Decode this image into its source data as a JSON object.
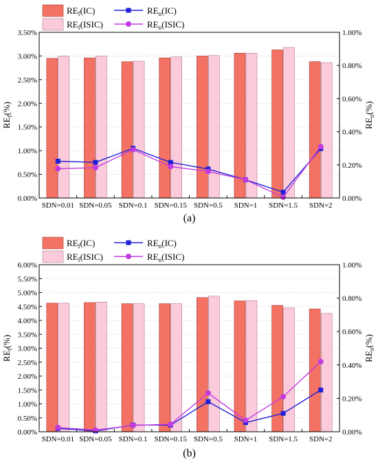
{
  "colors": {
    "ic_bar": "#F47264",
    "ic_bar_stroke": "#A33A30",
    "isic_bar": "#FBCADB",
    "isic_bar_stroke": "#B07A8E",
    "ic_line": "#1F1FD8",
    "isic_line": "#C23BE0"
  },
  "chart_data": [
    {
      "type": "bar",
      "panel_label": "(a)",
      "categories": [
        "SDN=0.01",
        "SDN=0.05",
        "SDN=0.1",
        "SDN=0.15",
        "SDN=0.5",
        "SDN=1",
        "SDN=1.5",
        "SDN=2"
      ],
      "left_axis": {
        "label_main": "RE",
        "label_sub": "f",
        "label_tail": "(%)",
        "ylim": [
          0,
          3.5
        ],
        "ticks": [
          "0.00%",
          "0.50%",
          "1.00%",
          "1.50%",
          "2.00%",
          "2.50%",
          "3.00%",
          "3.50%"
        ]
      },
      "right_axis": {
        "label_main": "RE",
        "label_sub": "n",
        "label_tail": "(%)",
        "ylim": [
          0,
          1.0
        ],
        "ticks": [
          "0.00%",
          "0.20%",
          "0.40%",
          "0.60%",
          "0.80%",
          "1.00%"
        ]
      },
      "grid": true,
      "legend_position": "top-left",
      "bar_series": [
        {
          "legend_main": "RE",
          "legend_sub": "f",
          "legend_tail": "(IC)",
          "values": [
            2.95,
            2.96,
            2.88,
            2.96,
            3.0,
            3.06,
            3.13,
            2.88
          ]
        },
        {
          "legend_main": "RE",
          "legend_sub": "f",
          "legend_tail": "(ISIC)",
          "values": [
            3.0,
            3.0,
            2.89,
            2.98,
            3.01,
            3.06,
            3.18,
            2.86
          ]
        }
      ],
      "line_series": [
        {
          "legend_main": "RE",
          "legend_sub": "n",
          "legend_tail": "(IC)",
          "marker": "square",
          "values": [
            0.222,
            0.215,
            0.3,
            0.215,
            0.175,
            0.11,
            0.035,
            0.298
          ]
        },
        {
          "legend_main": "RE",
          "legend_sub": "n",
          "legend_tail": "(ISIC)",
          "marker": "circle",
          "values": [
            0.177,
            0.183,
            0.292,
            0.19,
            0.16,
            0.11,
            0.005,
            0.31
          ]
        }
      ]
    },
    {
      "type": "bar",
      "panel_label": "(b)",
      "categories": [
        "SDN=0.01",
        "SDN=0.05",
        "SDN=0.1",
        "SDN=0.15",
        "SDN=0.5",
        "SDN=1",
        "SDN=1.5",
        "SDN=2"
      ],
      "left_axis": {
        "label_main": "RE",
        "label_sub": "f",
        "label_tail": "(%)",
        "ylim": [
          0,
          6.0
        ],
        "ticks": [
          "0.00%",
          "0.50%",
          "1.00%",
          "1.50%",
          "2.00%",
          "2.50%",
          "3.00%",
          "3.50%",
          "4.00%",
          "4.50%",
          "5.00%",
          "5.50%",
          "6.00%"
        ]
      },
      "right_axis": {
        "label_main": "RE",
        "label_sub": "n",
        "label_tail": "(%)",
        "ylim": [
          0,
          1.0
        ],
        "ticks": [
          "0.00%",
          "0.20%",
          "0.40%",
          "0.60%",
          "0.80%",
          "1.00%"
        ]
      },
      "grid": true,
      "legend_position": "top-left",
      "bar_series": [
        {
          "legend_main": "RE",
          "legend_sub": "f",
          "legend_tail": "(IC)",
          "values": [
            4.62,
            4.64,
            4.6,
            4.6,
            4.82,
            4.7,
            4.54,
            4.41
          ]
        },
        {
          "legend_main": "RE",
          "legend_sub": "f",
          "legend_tail": "(ISIC)",
          "values": [
            4.62,
            4.66,
            4.6,
            4.6,
            4.87,
            4.71,
            4.45,
            4.25
          ]
        }
      ],
      "line_series": [
        {
          "legend_main": "RE",
          "legend_sub": "n",
          "legend_tail": "(IC)",
          "marker": "square",
          "values": [
            0.02,
            0.005,
            0.04,
            0.04,
            0.18,
            0.055,
            0.11,
            0.25
          ]
        },
        {
          "legend_main": "RE",
          "legend_sub": "n",
          "legend_tail": "(ISIC)",
          "marker": "circle",
          "values": [
            0.025,
            0.01,
            0.038,
            0.045,
            0.232,
            0.068,
            0.21,
            0.42
          ]
        }
      ]
    }
  ]
}
